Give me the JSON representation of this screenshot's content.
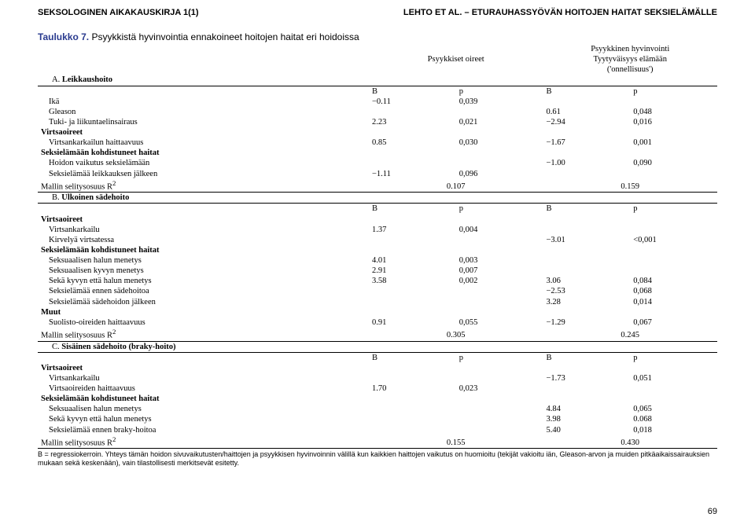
{
  "header": {
    "left": "SEKSOLOGINEN AIKAKAUSKIRJA 1(1)",
    "right": "LEHTO ET AL. – ETURAUHASSYÖVÄN HOITOJEN HAITAT SEKSIELÄMÄLLE"
  },
  "table": {
    "number": "Taulukko 7.",
    "caption": "Psyykkistä hyvinvointia ennakoineet hoitojen haitat eri hoidoissa",
    "colhead_left": "Psyykkiset oireet",
    "colhead_right_top": "Psyykkinen hyvinvointi",
    "colhead_right_mid": "Tyytyväisyys elämään",
    "colhead_right_bot": "('onnellisuus')",
    "B": "B",
    "p": "p",
    "sectionA": {
      "label": "A.",
      "title": "Leikkaushoito"
    },
    "rowsA": [
      {
        "label": "Ikä",
        "b1": "−0.11",
        "p1": "0,039",
        "b2": "",
        "p2": ""
      },
      {
        "label": "Gleason",
        "b1": "",
        "p1": "",
        "b2": "0.61",
        "p2": "0,048"
      },
      {
        "label": "Tuki- ja liikuntaelinsairaus",
        "b1": "2.23",
        "p1": "0,021",
        "b2": "−2.94",
        "p2": "0,016"
      }
    ],
    "groupA1": "Virtsaoireet",
    "rowsA1": [
      {
        "label": "Virtsankarkailun haittaavuus",
        "b1": "0.85",
        "p1": "0,030",
        "b2": "−1.67",
        "p2": "0,001"
      }
    ],
    "groupA2": "Seksielämään kohdistuneet haitat",
    "rowsA2": [
      {
        "label": "Hoidon vaikutus seksielämään",
        "b1": "",
        "p1": "",
        "b2": "−1.00",
        "p2": "0,090"
      },
      {
        "label": "Seksielämää leikkauksen jälkeen",
        "b1": "−1.11",
        "p1": "0,096",
        "b2": "",
        "p2": ""
      }
    ],
    "r2A": {
      "label": "Mallin selitysosuus R",
      "sup": "2",
      "v1": "0.107",
      "v2": "0.159"
    },
    "sectionB": {
      "label": "B.",
      "title": "Ulkoinen sädehoito"
    },
    "groupB1": "Virtsaoireet",
    "rowsB1": [
      {
        "label": "Virtsankarkailu",
        "b1": "1.37",
        "p1": "0,004",
        "b2": "",
        "p2": ""
      },
      {
        "label": "Kirvelyä virtsatessa",
        "b1": "",
        "p1": "",
        "b2": "−3.01",
        "p2": "<0,001"
      }
    ],
    "groupB2": "Seksielämään kohdistuneet haitat",
    "rowsB2": [
      {
        "label": "Seksuaalisen halun menetys",
        "b1": "4.01",
        "p1": "0,003",
        "b2": "",
        "p2": ""
      },
      {
        "label": "Seksuaalisen kyvyn menetys",
        "b1": "2.91",
        "p1": "0,007",
        "b2": "",
        "p2": ""
      },
      {
        "label": "Sekä kyvyn että halun menetys",
        "b1": "3.58",
        "p1": "0,002",
        "b2": "3.06",
        "p2": "0,084"
      },
      {
        "label": "Seksielämää ennen sädehoitoa",
        "b1": "",
        "p1": "",
        "b2": "−2.53",
        "p2": "0,068"
      },
      {
        "label": "Seksielämää sädehoidon jälkeen",
        "b1": "",
        "p1": "",
        "b2": "3.28",
        "p2": "0,014"
      }
    ],
    "groupB3": "Muut",
    "rowsB3": [
      {
        "label": "Suolisto-oireiden haittaavuus",
        "b1": "0.91",
        "p1": "0,055",
        "b2": "−1.29",
        "p2": "0,067"
      }
    ],
    "r2B": {
      "label": "Mallin selitysosuus R",
      "sup": "2",
      "v1": "0.305",
      "v2": "0.245"
    },
    "sectionC": {
      "label": "C.",
      "title": "Sisäinen sädehoito (braky-hoito)"
    },
    "groupC1": "Virtsaoireet",
    "rowsC1": [
      {
        "label": "Virtsankarkailu",
        "b1": "",
        "p1": "",
        "b2": "−1.73",
        "p2": "0,051"
      },
      {
        "label": "Virtsaoireiden haittaavuus",
        "b1": "1.70",
        "p1": "0,023",
        "b2": "",
        "p2": ""
      }
    ],
    "groupC2": "Seksielämään kohdistuneet haitat",
    "rowsC2": [
      {
        "label": "Seksuaalisen halun menetys",
        "b1": "",
        "p1": "",
        "b2": "4.84",
        "p2": "0,065"
      },
      {
        "label": "Sekä kyvyn että halun menetys",
        "b1": "",
        "p1": "",
        "b2": "3.98",
        "p2": "0.068"
      },
      {
        "label": "Seksielämää ennen braky-hoitoa",
        "b1": "",
        "p1": "",
        "b2": "5.40",
        "p2": "0,018"
      }
    ],
    "r2C": {
      "label": "Mallin selitysosuus R",
      "sup": "2",
      "v1": "0.155",
      "v2": "0.430"
    }
  },
  "footnote": "B = regressiokerroin. Yhteys tämän hoidon sivuvaikutusten/haittojen ja psyykkisen hyvinvoinnin välillä kun kaikkien haittojen vaikutus on huomioitu (tekijät vakioitu iän, Gleason-arvon ja muiden pitkäaikaissairauksien mukaan sekä keskenään), vain tilastollisesti merkitsevät esitetty.",
  "page_number": "69"
}
